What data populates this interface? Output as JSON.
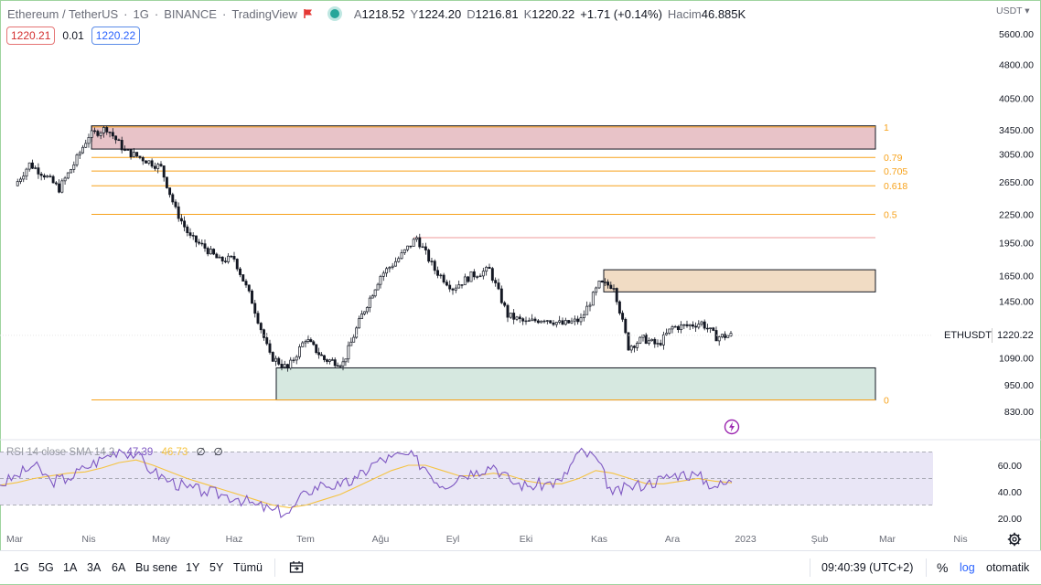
{
  "header": {
    "symbol": "Ethereum / TetherUS",
    "interval": "1G",
    "exchange": "BINANCE",
    "source": "TradingView",
    "open_label": "A",
    "open": "1218.52",
    "high_label": "Y",
    "high": "1224.20",
    "low_label": "D",
    "low": "1216.81",
    "close_label": "K",
    "close": "1220.22",
    "change": "+1.71 (+0.14%)",
    "volume_label": "Hacim",
    "volume": "46.885K",
    "sep": "·",
    "slash": "/"
  },
  "quotes": {
    "sell": "1220.21",
    "spread": "0.01",
    "buy": "1220.22"
  },
  "price_axis": {
    "currency": "USDT ▾",
    "ticks": [
      "5600.00",
      "4800.00",
      "4050.00",
      "3450.00",
      "3050.00",
      "2650.00",
      "2250.00",
      "1950.00",
      "1650.00",
      "1450.00",
      "1220.22",
      "1090.00",
      "950.00",
      "830.00"
    ],
    "ticker": "ETHUSDT",
    "last_price": "1220.22"
  },
  "time_axis": [
    "Mar",
    "Nis",
    "May",
    "Haz",
    "Tem",
    "Ağu",
    "Eyl",
    "Eki",
    "Kas",
    "Ara",
    "2023",
    "Şub",
    "Mar",
    "Nis"
  ],
  "fib_levels": [
    "1",
    "0.79",
    "0.705",
    "0.618",
    "0.5",
    "0"
  ],
  "rsi": {
    "title": "RSI 14 close SMA 14 2",
    "value": "47.39",
    "sma_value": "46.73",
    "z1": "∅",
    "z2": "∅",
    "ticks": [
      "60.00",
      "40.00",
      "20.00"
    ]
  },
  "bottom_bar": {
    "timeframes": [
      "1G",
      "5G",
      "1A",
      "3A",
      "6A",
      "Bu sene",
      "1Y",
      "5Y",
      "Tümü"
    ],
    "clock": "09:40:39 (UTC+2)",
    "percent": "%",
    "log": "log",
    "auto": "otomatik"
  },
  "icons": [
    "flag-icon",
    "status-dot-icon",
    "replay-icon",
    "gear-icon",
    "bolt-icon"
  ],
  "colors": {
    "up": "#131722",
    "down": "#131722",
    "fib": "#f7a21b",
    "supply_zone": "#e8c3c8",
    "mid_zone": "#f1dcc4",
    "demand_zone": "#d6e8e0",
    "rsi_line": "#7e57c2",
    "rsi_sma": "#f5c341",
    "rsi_band": "#e9e6f6"
  },
  "chart_data": {
    "type": "candlestick",
    "title": "Ethereum / TetherUS · 1G · BINANCE",
    "scale": "log",
    "ylim": [
      800,
      6000
    ],
    "x_ticks": [
      "Mar",
      "Nis",
      "May",
      "Haz",
      "Tem",
      "Ağu",
      "Eyl",
      "Eki",
      "Kas",
      "Ara",
      "2023",
      "Şub",
      "Mar",
      "Nis"
    ],
    "close_path": [
      [
        "Mar",
        2600
      ],
      [
        "Mar",
        2900
      ],
      [
        "Mar",
        2750
      ],
      [
        "Mar",
        2560
      ],
      [
        "Mar",
        2900
      ],
      [
        "Nis",
        3350
      ],
      [
        "Nis",
        3480
      ],
      [
        "Nis",
        3100
      ],
      [
        "Nis",
        2980
      ],
      [
        "May",
        2850
      ],
      [
        "May",
        2300
      ],
      [
        "May",
        2000
      ],
      [
        "May",
        1900
      ],
      [
        "May",
        1780
      ],
      [
        "Haz",
        1800
      ],
      [
        "Haz",
        1450
      ],
      [
        "Haz",
        1100
      ],
      [
        "Haz",
        1030
      ],
      [
        "Tem",
        1200
      ],
      [
        "Tem",
        1080
      ],
      [
        "Tem",
        1060
      ],
      [
        "Tem",
        1350
      ],
      [
        "Ağu",
        1650
      ],
      [
        "Ağu",
        1800
      ],
      [
        "Ağu",
        2000
      ],
      [
        "Ağu",
        1700
      ],
      [
        "Eyl",
        1550
      ],
      [
        "Eyl",
        1650
      ],
      [
        "Eyl",
        1700
      ],
      [
        "Eyl",
        1350
      ],
      [
        "Eki",
        1300
      ],
      [
        "Eki",
        1330
      ],
      [
        "Eki",
        1290
      ],
      [
        "Eki",
        1320
      ],
      [
        "Kas",
        1580
      ],
      [
        "Kas",
        1570
      ],
      [
        "Kas",
        1150
      ],
      [
        "Kas",
        1200
      ],
      [
        "Kas",
        1160
      ],
      [
        "Ara",
        1270
      ],
      [
        "Ara",
        1280
      ],
      [
        "Ara",
        1300
      ],
      [
        "Ara",
        1210
      ],
      [
        "Ara",
        1220
      ]
    ],
    "fibonacci": {
      "levels": [
        {
          "ratio": "1",
          "price": 3500
        },
        {
          "ratio": "0.79",
          "price": 3000
        },
        {
          "ratio": "0.705",
          "price": 2800
        },
        {
          "ratio": "0.618",
          "price": 2600
        },
        {
          "ratio": "0.5",
          "price": 2250
        },
        {
          "ratio": "0",
          "price": 880
        }
      ]
    },
    "zones": [
      {
        "name": "supply",
        "top": 3520,
        "bottom": 3130
      },
      {
        "name": "mid",
        "top": 1700,
        "bottom": 1520
      },
      {
        "name": "demand",
        "top": 1035,
        "bottom": 880
      }
    ],
    "horizontal_line": 2000,
    "rsi": {
      "ylim": [
        20,
        75
      ],
      "band": [
        30,
        70
      ],
      "rsi_series": [
        45,
        52,
        60,
        48,
        50,
        58,
        65,
        72,
        68,
        55,
        48,
        43,
        40,
        38,
        35,
        30,
        26,
        24,
        40,
        46,
        44,
        50,
        62,
        66,
        68,
        58,
        44,
        52,
        56,
        60,
        48,
        44,
        46,
        48,
        70,
        66,
        38,
        44,
        46,
        50,
        54,
        52,
        44,
        47.39
      ],
      "sma_series": [
        45,
        47,
        50,
        52,
        54,
        55,
        58,
        62,
        64,
        60,
        55,
        50,
        46,
        42,
        38,
        34,
        30,
        28,
        30,
        34,
        38,
        44,
        50,
        56,
        60,
        60,
        56,
        52,
        52,
        54,
        52,
        48,
        46,
        46,
        50,
        56,
        54,
        50,
        46,
        46,
        48,
        50,
        48,
        46.73
      ]
    }
  }
}
